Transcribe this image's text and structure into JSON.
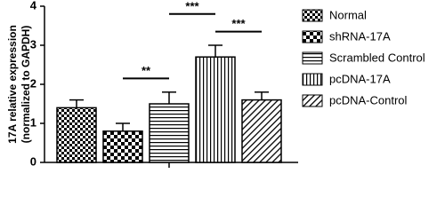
{
  "chart_data": {
    "type": "bar",
    "y_label": [
      "17A relative expression",
      "(normalized to GAPDH)"
    ],
    "categories": [
      null
    ],
    "series": [
      {
        "name": "Normal",
        "color": "#000000",
        "pattern": "checker",
        "values": [
          1.4
        ],
        "errors": [
          0.2
        ]
      },
      {
        "name": "shRNA-17A",
        "color": "#000000",
        "pattern": "big-checker",
        "values": [
          0.8
        ],
        "errors": [
          0.2
        ]
      },
      {
        "name": "Scrambled Control",
        "color": "#000000",
        "pattern": "horizontal",
        "values": [
          1.5
        ],
        "errors": [
          0.3
        ]
      },
      {
        "name": "pcDNA-17A",
        "color": "#000000",
        "pattern": "vertical",
        "values": [
          2.7
        ],
        "errors": [
          0.3
        ]
      },
      {
        "name": "pcDNA-Control",
        "color": "#000000",
        "pattern": "diagonal",
        "values": [
          1.6
        ],
        "errors": [
          0.2
        ]
      }
    ],
    "annotations": [
      {
        "text": "**",
        "from": 1,
        "to": 2
      },
      {
        "text": "***",
        "from": 3,
        "to": 4
      },
      {
        "text": "***",
        "from": 2,
        "to": 3
      }
    ],
    "ylim": [
      0,
      4
    ],
    "yticks": [
      0,
      1,
      2,
      3,
      4
    ]
  }
}
